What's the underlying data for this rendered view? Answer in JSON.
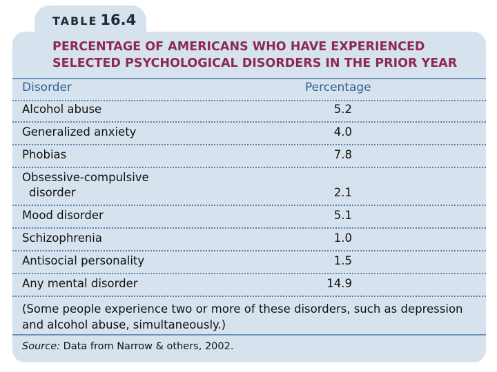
{
  "table": {
    "tab_word": "TABLE",
    "tab_number": "16.4",
    "title_lines": [
      "PERCENTAGE OF AMERICANS WHO HAVE EXPERIENCED",
      "SELECTED PSYCHOLOGICAL DISORDERS IN THE PRIOR YEAR"
    ],
    "headers": {
      "disorder": "Disorder",
      "percentage": "Percentage"
    },
    "rows": [
      {
        "lines": [
          "Alcohol abuse"
        ],
        "value": "5.2"
      },
      {
        "lines": [
          "Generalized anxiety"
        ],
        "value": "4.0"
      },
      {
        "lines": [
          "Phobias"
        ],
        "value": "7.8"
      },
      {
        "lines": [
          "Obsessive-compulsive",
          "disorder"
        ],
        "value": "2.1"
      },
      {
        "lines": [
          "Mood disorder"
        ],
        "value": "5.1"
      },
      {
        "lines": [
          "Schizophrenia"
        ],
        "value": "1.0"
      },
      {
        "lines": [
          "Antisocial personality"
        ],
        "value": "1.5"
      },
      {
        "lines": [
          "Any mental disorder"
        ],
        "value": "14.9"
      }
    ],
    "note_lines": [
      "(Some people experience two or more of these disorders, such as depression",
      "and alcohol abuse, simultaneously.)"
    ],
    "source_label": "Source:",
    "source_text": "Data from Narrow & others, 2002."
  },
  "colors": {
    "panel": "#d6e2ee",
    "title": "#8c2a52",
    "header": "#2f5f96",
    "rule": "#6a8fb6"
  }
}
